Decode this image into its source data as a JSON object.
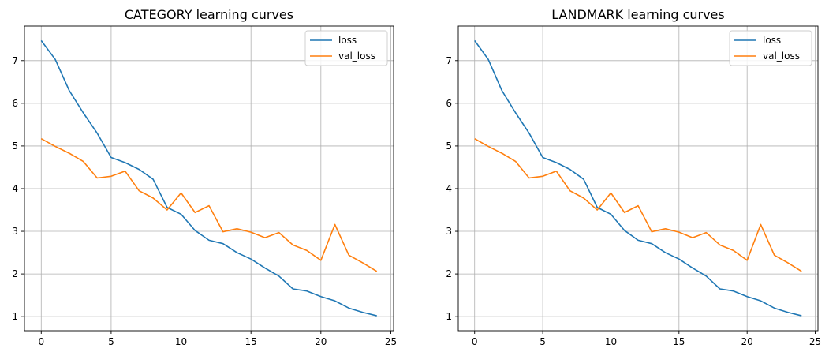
{
  "chart_data": [
    {
      "type": "line",
      "title": "CATEGORY learning curves",
      "xlabel": "",
      "ylabel": "",
      "xlim": [
        -1.2,
        25.2
      ],
      "ylim": [
        0.67,
        7.81
      ],
      "xticks": [
        0,
        5,
        10,
        15,
        20,
        25
      ],
      "yticks": [
        1,
        2,
        3,
        4,
        5,
        6,
        7
      ],
      "grid": true,
      "legend_position": "upper-right",
      "x": [
        0,
        1,
        2,
        3,
        4,
        5,
        6,
        7,
        8,
        9,
        10,
        11,
        12,
        13,
        14,
        15,
        16,
        17,
        18,
        19,
        20,
        21,
        22,
        23,
        24
      ],
      "series": [
        {
          "name": "loss",
          "color": "#1f77b4",
          "values": [
            7.47,
            7.03,
            6.3,
            5.78,
            5.3,
            4.73,
            4.61,
            4.45,
            4.22,
            3.56,
            3.4,
            3.02,
            2.79,
            2.71,
            2.5,
            2.35,
            2.14,
            1.95,
            1.65,
            1.6,
            1.47,
            1.37,
            1.2,
            1.1,
            1.02
          ]
        },
        {
          "name": "val_loss",
          "color": "#ff7f0e",
          "values": [
            5.17,
            4.99,
            4.83,
            4.64,
            4.25,
            4.29,
            4.41,
            3.95,
            3.78,
            3.5,
            3.9,
            3.44,
            3.6,
            2.99,
            3.06,
            2.98,
            2.85,
            2.97,
            2.68,
            2.55,
            2.32,
            3.16,
            2.44,
            2.26,
            2.06
          ]
        }
      ]
    },
    {
      "type": "line",
      "title": "LANDMARK learning curves",
      "xlabel": "",
      "ylabel": "",
      "xlim": [
        -1.2,
        25.2
      ],
      "ylim": [
        0.67,
        7.81
      ],
      "xticks": [
        0,
        5,
        10,
        15,
        20,
        25
      ],
      "yticks": [
        1,
        2,
        3,
        4,
        5,
        6,
        7
      ],
      "grid": true,
      "legend_position": "upper-right",
      "x": [
        0,
        1,
        2,
        3,
        4,
        5,
        6,
        7,
        8,
        9,
        10,
        11,
        12,
        13,
        14,
        15,
        16,
        17,
        18,
        19,
        20,
        21,
        22,
        23,
        24
      ],
      "series": [
        {
          "name": "loss",
          "color": "#1f77b4",
          "values": [
            7.47,
            7.03,
            6.3,
            5.78,
            5.3,
            4.73,
            4.61,
            4.45,
            4.22,
            3.56,
            3.4,
            3.02,
            2.79,
            2.71,
            2.5,
            2.35,
            2.14,
            1.95,
            1.65,
            1.6,
            1.47,
            1.37,
            1.2,
            1.1,
            1.02
          ]
        },
        {
          "name": "val_loss",
          "color": "#ff7f0e",
          "values": [
            5.17,
            4.99,
            4.83,
            4.64,
            4.25,
            4.29,
            4.41,
            3.95,
            3.78,
            3.5,
            3.9,
            3.44,
            3.6,
            2.99,
            3.06,
            2.98,
            2.85,
            2.97,
            2.68,
            2.55,
            2.32,
            3.16,
            2.44,
            2.26,
            2.06
          ]
        }
      ]
    }
  ]
}
